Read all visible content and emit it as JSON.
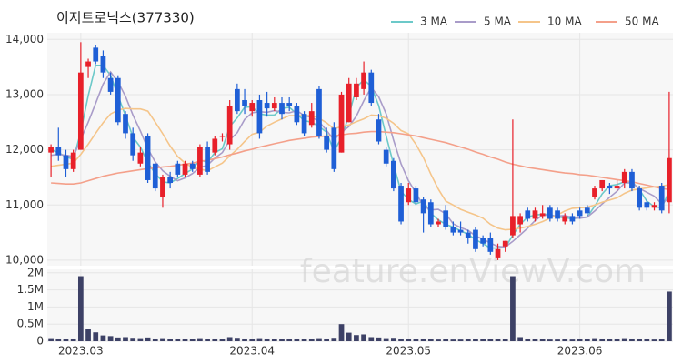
{
  "chart_data": {
    "type": "candlestick",
    "title": "이지트로닉스(377330)",
    "watermark": "feature.enViewV.com",
    "categories": [
      null,
      null,
      null,
      null,
      "2023.03",
      null,
      null,
      null,
      null,
      null,
      null,
      null,
      null,
      null,
      null,
      null,
      null,
      null,
      null,
      null,
      null,
      null,
      null,
      null,
      null,
      null,
      null,
      "2023.04",
      null,
      null,
      null,
      null,
      null,
      null,
      null,
      null,
      null,
      null,
      null,
      null,
      null,
      null,
      null,
      null,
      null,
      null,
      null,
      null,
      "2023.05",
      null,
      null,
      null,
      null,
      null,
      null,
      null,
      null,
      null,
      null,
      null,
      null,
      null,
      null,
      null,
      null,
      null,
      null,
      null,
      null,
      null,
      null,
      "2023.06",
      null,
      null,
      null,
      null,
      null,
      null,
      null,
      null,
      null,
      null,
      null,
      null
    ],
    "open": [
      11950,
      12050,
      11900,
      11650,
      12000,
      13500,
      13850,
      13700,
      13300,
      13300,
      12650,
      12300,
      11750,
      12250,
      11750,
      11150,
      11500,
      11750,
      11550,
      11750,
      11550,
      12050,
      11950,
      12250,
      12100,
      13100,
      12900,
      12700,
      12900,
      12850,
      12750,
      12850,
      12850,
      12800,
      12650,
      12450,
      13100,
      12250,
      12400,
      11950,
      12500,
      12950,
      13100,
      13400,
      12550,
      12000,
      11800,
      11350,
      11050,
      11300,
      11100,
      11050,
      10650,
      10900,
      10600,
      10550,
      10500,
      10550,
      10400,
      10400,
      10050,
      10250,
      10450,
      10650,
      10900,
      10750,
      10800,
      10950,
      10900,
      10700,
      10800,
      10900,
      10950,
      11150,
      11300,
      11350,
      11300,
      11400,
      11600,
      11300,
      11050,
      10950,
      11350,
      11050
    ],
    "high": [
      12100,
      12400,
      12000,
      12000,
      13950,
      13650,
      13900,
      13800,
      13400,
      13350,
      12700,
      12400,
      12050,
      12300,
      11750,
      11550,
      11600,
      11800,
      11800,
      11800,
      12100,
      12150,
      12250,
      12300,
      12900,
      13200,
      13100,
      12900,
      13000,
      13050,
      12950,
      12950,
      12950,
      12850,
      12700,
      12850,
      13150,
      12400,
      12500,
      13050,
      13300,
      13300,
      13600,
      13450,
      12650,
      12050,
      11850,
      11400,
      11400,
      11350,
      11150,
      11100,
      10750,
      11000,
      10700,
      10700,
      10550,
      10600,
      10450,
      10500,
      10300,
      10350,
      12550,
      10850,
      10950,
      10950,
      11000,
      11000,
      10950,
      10850,
      10850,
      10950,
      11000,
      11350,
      11450,
      11400,
      11450,
      11650,
      11650,
      11350,
      11100,
      11050,
      11400,
      13050
    ],
    "low": [
      11500,
      11800,
      11500,
      11600,
      12000,
      13300,
      13550,
      13300,
      13000,
      12450,
      12200,
      11800,
      11700,
      11400,
      11250,
      10950,
      11300,
      11500,
      11500,
      11600,
      11500,
      11550,
      11900,
      12150,
      12000,
      12650,
      12650,
      12600,
      12200,
      12600,
      12700,
      12550,
      12700,
      12450,
      12250,
      12400,
      12200,
      11950,
      11600,
      11950,
      12500,
      12900,
      13000,
      12800,
      12100,
      11700,
      11250,
      10650,
      11000,
      11000,
      10500,
      10600,
      10600,
      10550,
      10450,
      10450,
      10300,
      10150,
      10250,
      10100,
      10000,
      10150,
      10400,
      10500,
      10700,
      10700,
      10750,
      10700,
      10700,
      10650,
      10650,
      10750,
      10800,
      11100,
      11250,
      11200,
      11250,
      11300,
      11250,
      10900,
      10900,
      10900,
      10850,
      10850
    ],
    "close": [
      12050,
      11900,
      11650,
      11950,
      13400,
      13600,
      13600,
      13400,
      13050,
      12500,
      12300,
      11900,
      11950,
      11450,
      11300,
      11500,
      11400,
      11550,
      11750,
      11650,
      12050,
      11600,
      12200,
      12250,
      12800,
      12700,
      12800,
      12850,
      12300,
      12750,
      12850,
      12650,
      12800,
      12500,
      12300,
      12700,
      12250,
      12000,
      11650,
      13000,
      13200,
      13200,
      13400,
      12850,
      12150,
      11750,
      11300,
      10700,
      11300,
      11050,
      10850,
      10650,
      10700,
      10600,
      10500,
      10500,
      10400,
      10200,
      10300,
      10150,
      10200,
      10350,
      10800,
      10800,
      10750,
      10900,
      10850,
      10750,
      10750,
      10800,
      10700,
      10800,
      10850,
      11300,
      11450,
      11300,
      11350,
      11600,
      11300,
      10950,
      10950,
      11000,
      10900,
      11850
    ],
    "up_color": "#e8202a",
    "down_color": "#1f5fd6",
    "ylim": [
      9900,
      14120
    ],
    "yticks": [
      {
        "value": 10000,
        "label": "10,000"
      },
      {
        "value": 11000,
        "label": "11,000"
      },
      {
        "value": 12000,
        "label": "12,000"
      },
      {
        "value": 13000,
        "label": "13,000"
      },
      {
        "value": 14000,
        "label": "14,000"
      }
    ],
    "grid": true,
    "series": [
      {
        "name": "3 MA",
        "color": "#6cc9c9",
        "values": [
          12000,
          11950,
          11870,
          11830,
          12330,
          12980,
          13530,
          13530,
          13350,
          12980,
          12620,
          12230,
          12050,
          11770,
          11570,
          11420,
          11400,
          11480,
          11570,
          11650,
          11820,
          11770,
          11950,
          12020,
          12420,
          12580,
          12770,
          12780,
          12650,
          12630,
          12630,
          12750,
          12770,
          12650,
          12530,
          12500,
          12420,
          12320,
          11970,
          12220,
          12620,
          13130,
          13270,
          13150,
          12800,
          12250,
          11730,
          11250,
          11100,
          11020,
          11070,
          10850,
          10730,
          10650,
          10600,
          10530,
          10470,
          10370,
          10300,
          10220,
          10220,
          10230,
          10450,
          10650,
          10780,
          10820,
          10830,
          10830,
          10780,
          10770,
          10750,
          10770,
          10780,
          10980,
          11200,
          11350,
          11370,
          11420,
          11420,
          11280,
          11070,
          10970,
          10950,
          11250
        ]
      },
      {
        "name": "5 MA",
        "color": "#a99cc9",
        "values": [
          11900,
          11920,
          11900,
          11880,
          12190,
          12500,
          12840,
          13190,
          13410,
          13230,
          12970,
          12630,
          12340,
          12020,
          11780,
          11620,
          11520,
          11440,
          11490,
          11570,
          11680,
          11720,
          11850,
          11950,
          12180,
          12310,
          12550,
          12670,
          12690,
          12680,
          12710,
          12680,
          12670,
          12710,
          12620,
          12590,
          12510,
          12350,
          12180,
          12320,
          12420,
          12610,
          12890,
          13130,
          12960,
          12650,
          12170,
          11750,
          11440,
          11220,
          10980,
          10910,
          10920,
          10840,
          10660,
          10590,
          10540,
          10440,
          10380,
          10310,
          10250,
          10240,
          10340,
          10460,
          10580,
          10720,
          10820,
          10810,
          10800,
          10810,
          10770,
          10760,
          10780,
          10890,
          11020,
          11140,
          11250,
          11400,
          11400,
          11300,
          11230,
          11160,
          11020,
          11130
        ]
      },
      {
        "name": "10 MA",
        "color": "#f5c58a",
        "values": [
          11700,
          11720,
          11740,
          11760,
          11920,
          12100,
          12300,
          12490,
          12650,
          12720,
          12750,
          12740,
          12740,
          12700,
          12500,
          12290,
          12070,
          11880,
          11760,
          11680,
          11650,
          11620,
          11690,
          11760,
          11890,
          12010,
          12150,
          12280,
          12320,
          12430,
          12500,
          12560,
          12620,
          12620,
          12620,
          12620,
          12570,
          12490,
          12380,
          12420,
          12450,
          12510,
          12560,
          12630,
          12620,
          12570,
          12480,
          12350,
          12290,
          12100,
          11860,
          11560,
          11290,
          11070,
          11000,
          10920,
          10870,
          10820,
          10760,
          10650,
          10580,
          10550,
          10560,
          10580,
          10610,
          10650,
          10700,
          10760,
          10820,
          10890,
          10940,
          10950,
          10960,
          11000,
          11050,
          11090,
          11130,
          11210,
          11270,
          11290,
          11310,
          11330,
          11340,
          11370
        ]
      },
      {
        "name": "50 MA",
        "color": "#f4a08a",
        "values": [
          11400,
          11390,
          11380,
          11380,
          11400,
          11440,
          11480,
          11520,
          11550,
          11580,
          11600,
          11620,
          11640,
          11660,
          11670,
          11690,
          11700,
          11720,
          11740,
          11760,
          11790,
          11810,
          11840,
          11870,
          11910,
          11940,
          11980,
          12010,
          12050,
          12080,
          12110,
          12140,
          12170,
          12190,
          12210,
          12230,
          12240,
          12250,
          12250,
          12270,
          12290,
          12300,
          12320,
          12330,
          12330,
          12320,
          12310,
          12290,
          12270,
          12250,
          12220,
          12190,
          12160,
          12130,
          12090,
          12050,
          12010,
          11960,
          11920,
          11870,
          11830,
          11780,
          11740,
          11710,
          11680,
          11660,
          11640,
          11620,
          11600,
          11580,
          11570,
          11550,
          11540,
          11520,
          11500,
          11480,
          11460,
          11440,
          11420,
          11390,
          11360,
          11330,
          11300,
          11280
        ]
      }
    ],
    "volume": {
      "type": "bar",
      "color": "#3d4166",
      "values": [
        90000,
        80000,
        70000,
        80000,
        1900000,
        350000,
        260000,
        170000,
        150000,
        110000,
        120000,
        100000,
        90000,
        110000,
        80000,
        90000,
        70000,
        60000,
        70000,
        60000,
        90000,
        70000,
        80000,
        70000,
        120000,
        100000,
        80000,
        70000,
        90000,
        80000,
        70000,
        60000,
        70000,
        60000,
        70000,
        80000,
        90000,
        80000,
        100000,
        500000,
        250000,
        180000,
        200000,
        120000,
        110000,
        90000,
        100000,
        80000,
        70000,
        60000,
        80000,
        60000,
        50000,
        60000,
        50000,
        50000,
        60000,
        70000,
        60000,
        60000,
        70000,
        60000,
        1900000,
        120000,
        80000,
        70000,
        60000,
        50000,
        50000,
        60000,
        50000,
        60000,
        60000,
        90000,
        80000,
        70000,
        60000,
        90000,
        80000,
        70000,
        60000,
        50000,
        60000,
        1450000
      ],
      "ylim": [
        0,
        2100000
      ],
      "yticks": [
        0,
        {
          "value": 500000,
          "label": "0.5M"
        },
        {
          "value": 1000000,
          "label": "1M"
        },
        {
          "value": 1500000,
          "label": "1.5M"
        },
        {
          "value": 2000000,
          "label": "2M"
        }
      ]
    }
  }
}
